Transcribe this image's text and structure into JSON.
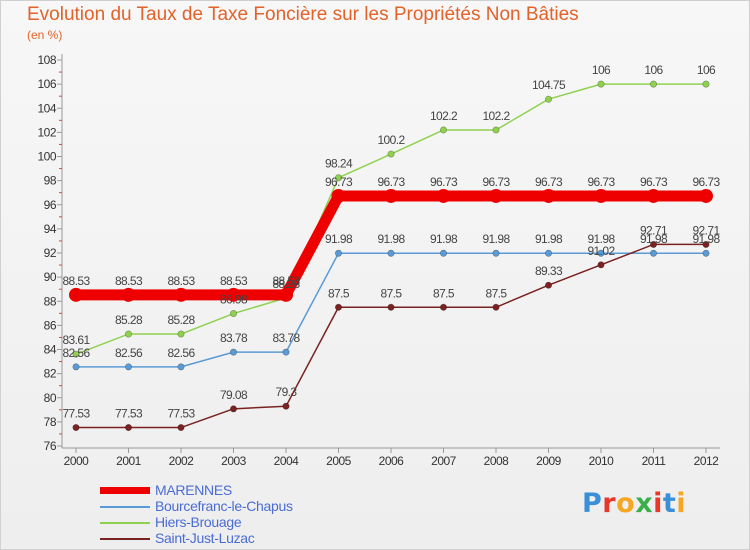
{
  "title": "Evolution du Taux de Taxe Foncière sur les Propriétés Non Bâties",
  "unit_label": "(en %)",
  "logo": {
    "text": "Proxiti",
    "letter_colors": [
      "#3a8fd9",
      "#e8382a",
      "#f5a623",
      "#3cae4a",
      "#e8382a",
      "#3a8fd9",
      "#f5a623"
    ]
  },
  "chart_data": {
    "type": "line",
    "title": "Evolution du Taux de Taxe Foncière sur les Propriétés Non Bâties",
    "ylabel": "(en %)",
    "xlabel": "",
    "x": [
      "2000",
      "2001",
      "2002",
      "2003",
      "2004",
      "2005",
      "2006",
      "2007",
      "2008",
      "2009",
      "2010",
      "2011",
      "2012"
    ],
    "ylim": [
      76,
      108
    ],
    "yticks": [
      76,
      78,
      80,
      82,
      84,
      86,
      88,
      90,
      92,
      94,
      96,
      98,
      100,
      102,
      104,
      106,
      108
    ],
    "grid": false,
    "legend_position": "bottom-left",
    "series": [
      {
        "name": "MARENNES",
        "color": "#ee0000",
        "values": [
          88.53,
          88.53,
          88.53,
          88.53,
          88.53,
          96.73,
          96.73,
          96.73,
          96.73,
          96.73,
          96.73,
          96.73,
          96.73
        ],
        "labels": [
          "88.53",
          "88.53",
          "88.53",
          "88.53",
          "88.53",
          "96.73",
          "96.73",
          "96.73",
          "96.73",
          "96.73",
          "96.73",
          "96.73",
          "96.73"
        ]
      },
      {
        "name": "Bourcefranc-le-Chapus",
        "color": "#5b9bd5",
        "values": [
          82.56,
          82.56,
          82.56,
          83.78,
          83.78,
          91.98,
          91.98,
          91.98,
          91.98,
          91.98,
          91.98,
          91.98,
          91.98
        ],
        "labels": [
          "82.56",
          "82.56",
          "82.56",
          "83.78",
          "83.78",
          "91.98",
          "91.98",
          "91.98",
          "91.98",
          "91.98",
          "91.98",
          "91.98",
          "91.98"
        ]
      },
      {
        "name": "Hiers-Brouage",
        "color": "#8fd14f",
        "values": [
          83.61,
          85.28,
          85.28,
          86.98,
          88.28,
          98.24,
          100.2,
          102.2,
          102.2,
          104.75,
          106,
          106,
          106
        ],
        "labels": [
          "83.61",
          "85.28",
          "85.28",
          "86.98",
          "88.28",
          "98.24",
          "100.2",
          "102.2",
          "102.2",
          "104.75",
          "106",
          "106",
          "106"
        ]
      },
      {
        "name": "Saint-Just-Luzac",
        "color": "#7a2222",
        "values": [
          77.53,
          77.53,
          77.53,
          79.08,
          79.3,
          87.5,
          87.5,
          87.5,
          87.5,
          89.33,
          91.02,
          92.71,
          92.71
        ],
        "labels": [
          "77.53",
          "77.53",
          "77.53",
          "79.08",
          "79.3",
          "87.5",
          "87.5",
          "87.5",
          "87.5",
          "89.33",
          "91.02",
          "92.71",
          "92.71"
        ]
      }
    ]
  }
}
